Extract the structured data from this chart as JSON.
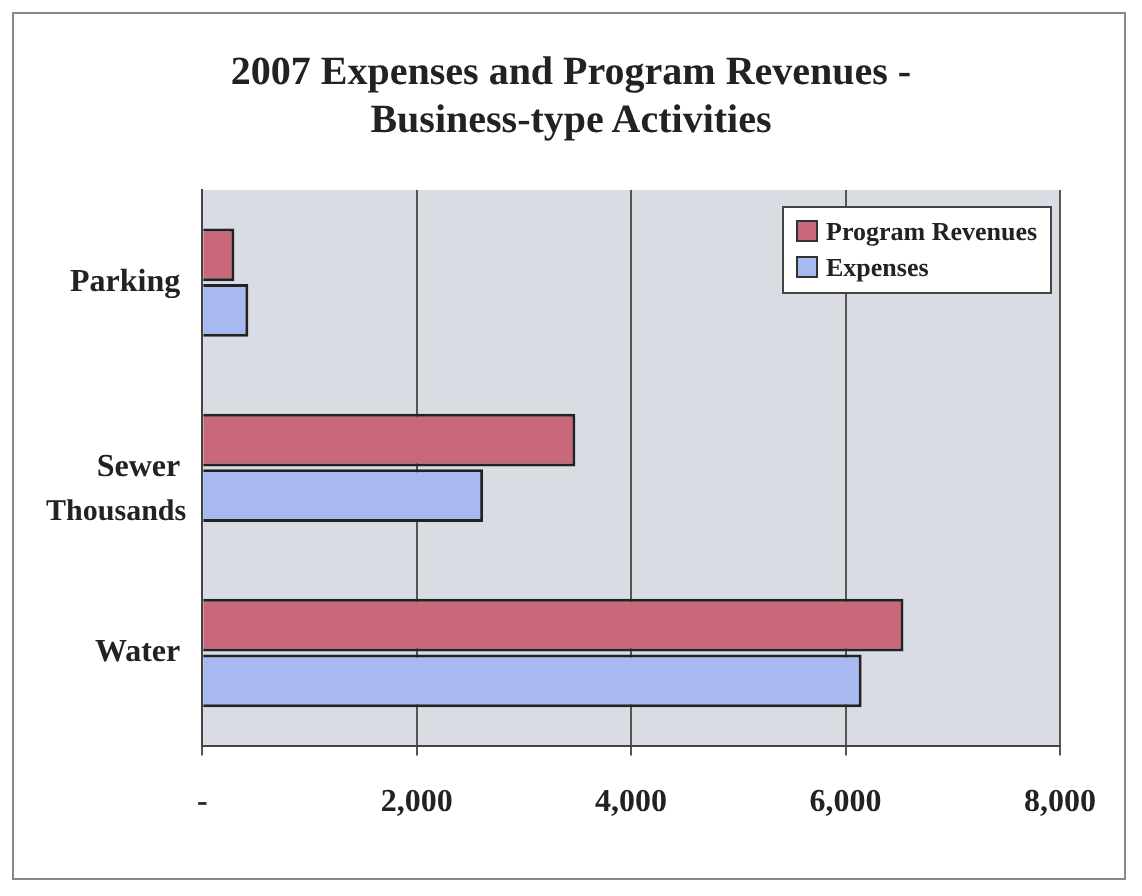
{
  "chart_data": {
    "type": "bar",
    "orientation": "horizontal",
    "title": "2007 Expenses and Program Revenues -\nBusiness-type Activities",
    "xlabel": "Thousands",
    "categories": [
      "Parking",
      "Sewer",
      "Water"
    ],
    "series": [
      {
        "name": "Program Revenues",
        "color": "#c8687a",
        "values": [
          300,
          3480,
          6540
        ]
      },
      {
        "name": "Expenses",
        "color": "#a8b8f0",
        "values": [
          430,
          2620,
          6150
        ]
      }
    ],
    "xlim": [
      0,
      8000
    ],
    "xticks": [
      {
        "value": 0,
        "label": "-"
      },
      {
        "value": 2000,
        "label": "2,000"
      },
      {
        "value": 4000,
        "label": "4,000"
      },
      {
        "value": 6000,
        "label": "6,000"
      },
      {
        "value": 8000,
        "label": "8,000"
      }
    ],
    "grid": "x",
    "legend": "top right"
  }
}
